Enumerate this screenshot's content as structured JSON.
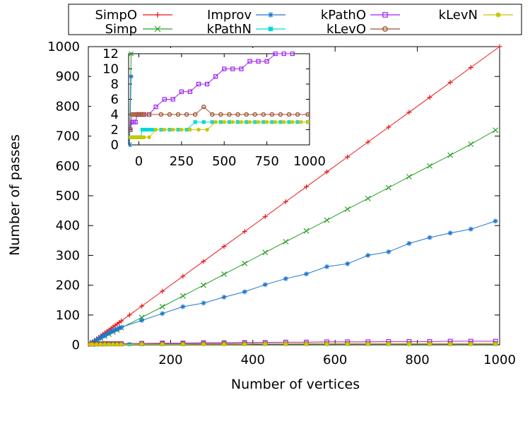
{
  "chart_data": {
    "type": "line",
    "xlabel": "Number of vertices",
    "ylabel": "Number of passes",
    "xlim": [
      0,
      1000
    ],
    "ylim": [
      0,
      1000
    ],
    "x_ticks": [
      "200",
      "400",
      "600",
      "800",
      "1000"
    ],
    "y_ticks": [
      "0",
      "100",
      "200",
      "300",
      "400",
      "500",
      "600",
      "700",
      "800",
      "900",
      "1000"
    ],
    "grid": false,
    "legend_position": "top, outside plot, 4 columns",
    "series": [
      {
        "name": "SimpO",
        "color": "#e41a1c",
        "marker": "plus",
        "x": [
          5,
          10,
          15,
          20,
          25,
          30,
          35,
          40,
          45,
          50,
          55,
          60,
          65,
          70,
          75,
          80,
          100,
          130,
          180,
          230,
          280,
          330,
          380,
          430,
          480,
          530,
          580,
          630,
          680,
          730,
          780,
          830,
          880,
          930,
          1000
        ],
        "y": [
          5,
          10,
          15,
          20,
          25,
          30,
          35,
          40,
          45,
          50,
          55,
          60,
          65,
          70,
          75,
          80,
          100,
          130,
          180,
          230,
          280,
          330,
          380,
          430,
          480,
          530,
          580,
          630,
          680,
          730,
          780,
          830,
          880,
          930,
          1000
        ]
      },
      {
        "name": "Simp",
        "color": "#2ca02c",
        "marker": "x",
        "x": [
          5,
          10,
          20,
          30,
          40,
          50,
          60,
          70,
          80,
          130,
          180,
          230,
          280,
          330,
          380,
          430,
          480,
          530,
          580,
          630,
          680,
          730,
          780,
          830,
          880,
          930,
          990
        ],
        "y": [
          4,
          8,
          15,
          22,
          29,
          36,
          43,
          50,
          57,
          92,
          128,
          164,
          200,
          237,
          273,
          310,
          346,
          382,
          418,
          455,
          491,
          527,
          564,
          600,
          636,
          673,
          720
        ]
      },
      {
        "name": "Improv",
        "color": "#1f77d0",
        "marker": "star",
        "x": [
          5,
          10,
          15,
          20,
          25,
          30,
          35,
          40,
          45,
          50,
          55,
          60,
          65,
          70,
          75,
          80,
          130,
          180,
          230,
          280,
          330,
          380,
          430,
          480,
          530,
          580,
          630,
          680,
          730,
          780,
          830,
          880,
          930,
          990
        ],
        "y": [
          4,
          8,
          12,
          16,
          20,
          24,
          28,
          32,
          36,
          40,
          44,
          47,
          50,
          53,
          56,
          59,
          82,
          105,
          128,
          140,
          160,
          178,
          202,
          222,
          238,
          262,
          272,
          300,
          312,
          340,
          360,
          375,
          388,
          415
        ]
      },
      {
        "name": "kPathN",
        "color": "#00d8d8",
        "marker": "filled-square",
        "x": [
          10,
          20,
          30,
          40,
          50,
          60,
          70,
          80,
          100,
          130,
          180,
          230,
          280,
          330,
          380,
          430,
          480,
          530,
          580,
          630,
          680,
          730,
          780,
          830,
          880,
          930,
          990
        ],
        "y": [
          2,
          2,
          2,
          2,
          2,
          2,
          2,
          2,
          2,
          2,
          2,
          2,
          3,
          3,
          3,
          3,
          3,
          3,
          3,
          3,
          3,
          3,
          3,
          3,
          3,
          3,
          3
        ]
      },
      {
        "name": "kPathO",
        "color": "#a020f0",
        "marker": "open-square",
        "x": [
          5,
          10,
          20,
          30,
          40,
          50,
          60,
          70,
          80,
          130,
          180,
          230,
          280,
          330,
          380,
          430,
          480,
          530,
          580,
          630,
          680,
          730,
          780,
          830,
          880,
          930,
          990
        ],
        "y": [
          2,
          2,
          3,
          3,
          4,
          4,
          4,
          4,
          4,
          5,
          6,
          6,
          7,
          7,
          8,
          8,
          9,
          9,
          10,
          10,
          10,
          11,
          11,
          11,
          12,
          12,
          12
        ]
      },
      {
        "name": "kLevO",
        "color": "#a0522d",
        "marker": "open-circle",
        "x": [
          5,
          10,
          20,
          30,
          40,
          50,
          60,
          70,
          80,
          130,
          180,
          230,
          280,
          330,
          380,
          430,
          480,
          530,
          580,
          630,
          680,
          730,
          780,
          830,
          880,
          930,
          990
        ],
        "y": [
          2,
          4,
          4,
          4,
          4,
          4,
          4,
          4,
          4,
          4,
          4,
          4,
          4,
          4,
          4,
          4,
          4,
          4,
          4,
          4,
          4,
          4,
          4,
          4,
          4,
          4,
          4
        ]
      },
      {
        "name": "kLevN",
        "color": "#c8c800",
        "marker": "filled-circle",
        "x": [
          5,
          10,
          20,
          30,
          40,
          50,
          60,
          70,
          80,
          130,
          180,
          230,
          280,
          330,
          380,
          430,
          480,
          530,
          580,
          630,
          680,
          730,
          780,
          830,
          880,
          930,
          990
        ],
        "y": [
          1,
          1,
          1,
          1,
          1,
          1,
          1,
          1,
          1,
          2,
          2,
          2,
          2,
          2,
          2,
          3,
          3,
          3,
          3,
          3,
          3,
          3,
          3,
          3,
          3,
          3,
          3
        ]
      }
    ],
    "inset": {
      "xlim": [
        -60,
        1000
      ],
      "ylim": [
        0,
        12
      ],
      "x_ticks": [
        "0",
        "250",
        "500",
        "750",
        "1000"
      ],
      "y_ticks": [
        "0",
        "2",
        "4",
        "6",
        "8",
        "10",
        "12"
      ],
      "visible_series": [
        "Simp",
        "Improv",
        "kPathN",
        "kPathO",
        "kLevO",
        "kLevN"
      ],
      "series_points": {
        "Simp": {
          "x": [
            -55,
            -45
          ],
          "y": [
            0,
            12
          ]
        },
        "Improv": {
          "x": [
            -55,
            -45
          ],
          "y": [
            0,
            9
          ]
        },
        "kPathN": {
          "x": [
            -50,
            -40,
            -30,
            -20,
            -10,
            0,
            10,
            20,
            30,
            40,
            50,
            60,
            70,
            80,
            130,
            180,
            230,
            280,
            330,
            380,
            430,
            480,
            530,
            580,
            630,
            680,
            730,
            780,
            830,
            880,
            930,
            990
          ],
          "y": [
            1,
            1,
            1,
            1,
            1,
            1,
            1,
            2,
            2,
            2,
            2,
            2,
            2,
            2,
            2,
            2,
            2,
            2,
            3,
            3,
            3,
            3,
            3,
            3,
            3,
            3,
            3,
            3,
            3,
            3,
            3,
            3
          ]
        },
        "kPathO": {
          "x": [
            -50,
            -40,
            -30,
            -20,
            -10,
            0,
            10,
            20,
            30,
            60,
            100,
            150,
            200,
            250,
            300,
            350,
            400,
            450,
            500,
            550,
            600,
            650,
            700,
            750,
            800,
            850,
            900
          ],
          "y": [
            2,
            3,
            3,
            3,
            4,
            4,
            4,
            4,
            4,
            4,
            5,
            6,
            6,
            7,
            7,
            8,
            8,
            9,
            10,
            10,
            10,
            11,
            11,
            11,
            12,
            12,
            12
          ]
        },
        "kLevO": {
          "x": [
            -50,
            -40,
            -30,
            -20,
            -10,
            0,
            10,
            20,
            30,
            60,
            130,
            180,
            230,
            280,
            330,
            380,
            430,
            480,
            530,
            580,
            630,
            680,
            730,
            780,
            830,
            880,
            930,
            990
          ],
          "y": [
            2,
            4,
            4,
            4,
            4,
            4,
            4,
            4,
            4,
            4,
            4,
            4,
            4,
            4,
            4,
            5,
            4,
            4,
            4,
            4,
            4,
            4,
            4,
            4,
            4,
            4,
            4,
            4
          ]
        },
        "kLevN": {
          "x": [
            -50,
            -40,
            -30,
            -20,
            -10,
            0,
            10,
            20,
            30,
            60,
            100,
            150,
            200,
            250,
            300,
            350,
            400,
            450,
            500,
            550,
            600,
            650,
            700,
            750,
            800,
            850,
            900,
            950,
            990
          ],
          "y": [
            1,
            1,
            1,
            1,
            1,
            1,
            1,
            1,
            1,
            1,
            2,
            2,
            2,
            2,
            2,
            2,
            2,
            3,
            3,
            3,
            3,
            3,
            3,
            3,
            3,
            3,
            3,
            3,
            3
          ]
        }
      }
    }
  }
}
